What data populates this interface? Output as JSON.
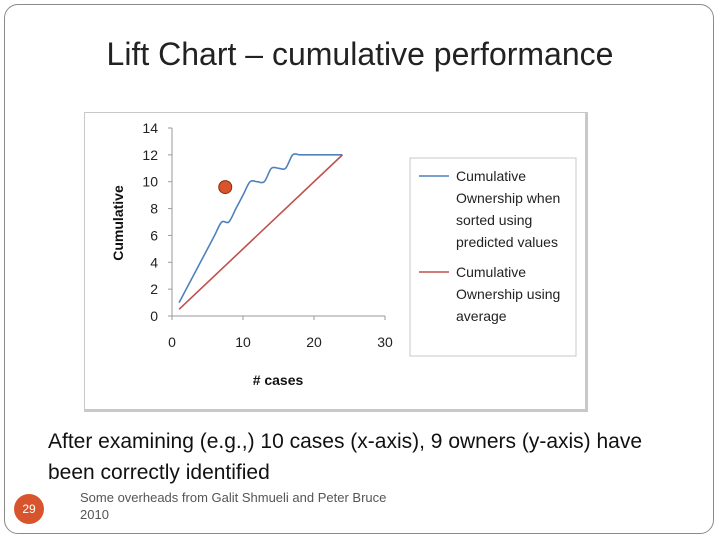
{
  "slide": {
    "title": "Lift Chart – cumulative performance",
    "body": "After examining (e.g.,) 10 cases (x-axis), 9 owners (y-axis) have been correctly identified",
    "footer": "Some overheads from Galit Shmueli and Peter Bruce 2010",
    "page_number": "29",
    "accent_color": "#d8542c"
  },
  "chart_data": {
    "type": "line",
    "xlabel": "# cases",
    "ylabel": "Cumulative",
    "xlim": [
      0,
      30
    ],
    "ylim": [
      0,
      14
    ],
    "x_ticks": [
      "0",
      "10",
      "20",
      "30"
    ],
    "y_ticks": [
      "0",
      "2",
      "4",
      "6",
      "8",
      "10",
      "12",
      "14"
    ],
    "grid": false,
    "legend_position": "right",
    "series": [
      {
        "name": "Cumulative Ownership when sorted using predicted values",
        "color": "#4f81bd",
        "x": [
          1,
          2,
          3,
          4,
          5,
          6,
          7,
          8,
          9,
          10,
          11,
          12,
          13,
          14,
          15,
          16,
          17,
          18,
          19,
          20,
          21,
          22,
          23,
          24
        ],
        "y": [
          1,
          2,
          3,
          4,
          5,
          6,
          7,
          7,
          8,
          9,
          10,
          10,
          10,
          11,
          11,
          11,
          12,
          12,
          12,
          12,
          12,
          12,
          12,
          12
        ]
      },
      {
        "name": "Cumulative Ownership using average",
        "color": "#c0504d",
        "x": [
          1,
          24
        ],
        "y": [
          0.5,
          12
        ]
      }
    ],
    "marker": {
      "x": 7.5,
      "y": 9.6,
      "color": "#d8542c"
    }
  }
}
